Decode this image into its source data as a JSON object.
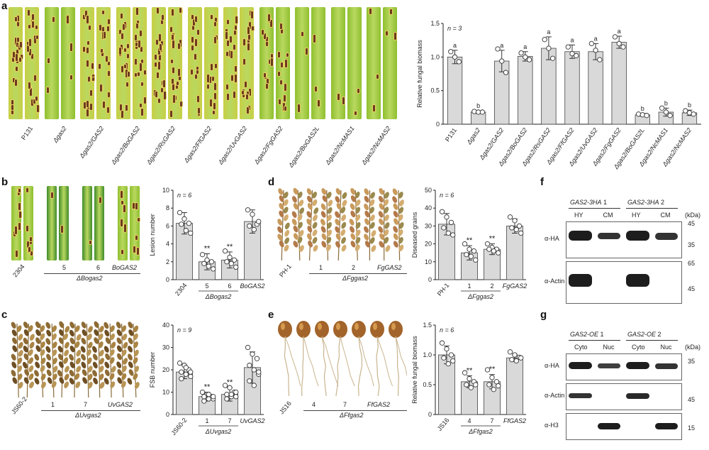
{
  "panels": {
    "a": {
      "letter": "a",
      "photo_labels": [
        "P131",
        "Δgas2",
        "Δgas2/GAS2",
        "Δgas2/BoGAS2",
        "Δgas2/RsGAS2",
        "Δgas2/FfGAS2",
        "Δgas2/UvGAS2",
        "Δgas2/FgGAS2",
        "Δgas2/BoGAS2L",
        "Δgas2/NcMAS1",
        "Δgas2/NcMAS2"
      ],
      "chart_data": {
        "type": "bar",
        "ylabel": "Relative fungal biomass",
        "annotation": "n = 3",
        "ylim": [
          0,
          1.5
        ],
        "yticks": [
          0,
          0.5,
          1.0,
          1.5
        ],
        "categories": [
          "P131",
          "Δgas2",
          "Δgas2/GAS2",
          "Δgas2/BoGAS2",
          "Δgas2/RsGAS2",
          "Δgas2/FfGAS2",
          "Δgas2/UvGAS2",
          "Δgas2/FgGAS2",
          "Δgas2/BoGAS2L",
          "Δgas2/NcMAS1",
          "Δgas2/NcMAS2"
        ],
        "values": [
          1.0,
          0.18,
          0.94,
          1.01,
          1.13,
          1.08,
          1.08,
          1.22,
          0.14,
          0.18,
          0.17
        ],
        "errors": [
          0.1,
          0.02,
          0.16,
          0.07,
          0.17,
          0.1,
          0.12,
          0.09,
          0.02,
          0.06,
          0.04
        ],
        "letters": [
          "a",
          "b",
          "a",
          "a",
          "a",
          "a",
          "a",
          "a",
          "b",
          "b",
          "b"
        ],
        "points": [
          [
            1.08,
            1.0,
            0.93
          ],
          [
            0.19,
            0.18,
            0.18
          ],
          [
            1.12,
            0.94,
            0.77
          ],
          [
            1.06,
            1.0,
            0.96
          ],
          [
            1.26,
            1.13,
            0.98
          ],
          [
            1.15,
            1.05,
            1.02
          ],
          [
            1.2,
            1.1,
            0.96
          ],
          [
            1.3,
            1.2,
            1.15
          ],
          [
            0.15,
            0.14,
            0.13
          ],
          [
            0.24,
            0.18,
            0.13
          ],
          [
            0.2,
            0.17,
            0.15
          ]
        ]
      }
    },
    "b": {
      "letter": "b",
      "photo_labels": [
        "2304",
        "5",
        "6",
        "BoGAS2"
      ],
      "group_label": "ΔBogas2",
      "chart_data": {
        "type": "bar",
        "ylabel": "Lesion number",
        "annotation": "n = 6",
        "ylim": [
          0,
          10
        ],
        "yticks": [
          0,
          2,
          4,
          6,
          8,
          10
        ],
        "categories": [
          "2304",
          "5",
          "6",
          "BoGAS2"
        ],
        "group_label": "ΔBogas2",
        "values": [
          6.3,
          2.0,
          2.2,
          6.5
        ],
        "errors": [
          1.2,
          0.9,
          0.9,
          1.3
        ],
        "stars": [
          "",
          "**",
          "**",
          ""
        ],
        "points": [
          [
            7.5,
            6.8,
            6.3,
            6.2,
            5.5,
            5.2
          ],
          [
            2.8,
            2.2,
            2.0,
            1.8,
            1.5,
            1.2
          ],
          [
            3.2,
            2.5,
            2.2,
            2.0,
            1.8,
            1.4
          ],
          [
            7.8,
            7.3,
            6.2,
            6.0,
            5.6,
            6.5
          ]
        ]
      }
    },
    "c": {
      "letter": "c",
      "photo_labels": [
        "JS60-2",
        "1",
        "7",
        "UvGAS2"
      ],
      "group_label": "ΔUvgas2",
      "chart_data": {
        "type": "bar",
        "ylabel": "FSB number",
        "annotation": "n = 9",
        "ylim": [
          0,
          40
        ],
        "yticks": [
          0,
          10,
          20,
          30,
          40
        ],
        "categories": [
          "JS60-2",
          "1",
          "7",
          "UvGAS2"
        ],
        "group_label": "ΔUvgas2",
        "values": [
          19,
          8,
          9,
          21
        ],
        "errors": [
          3,
          2,
          3,
          7
        ],
        "stars": [
          "",
          "**",
          "**",
          ""
        ],
        "points": [
          [
            23,
            22,
            20,
            19,
            18,
            17,
            16,
            21,
            19
          ],
          [
            10,
            9,
            8,
            8,
            7,
            7,
            6,
            9,
            8
          ],
          [
            13,
            12,
            10,
            9,
            8,
            8,
            7,
            9,
            10
          ],
          [
            30,
            27,
            25,
            22,
            20,
            18,
            15,
            13,
            19
          ]
        ]
      }
    },
    "d": {
      "letter": "d",
      "photo_labels": [
        "PH-1",
        "1",
        "2",
        "FgGAS2"
      ],
      "group_label": "ΔFggas2",
      "chart_data": {
        "type": "bar",
        "ylabel": "Diseased grains",
        "annotation": "n = 6",
        "ylim": [
          0,
          50
        ],
        "yticks": [
          0,
          10,
          20,
          30,
          40,
          50
        ],
        "categories": [
          "PH-1",
          "1",
          "2",
          "FgGAS2"
        ],
        "group_label": "ΔFggas2",
        "values": [
          31,
          15,
          17,
          30
        ],
        "errors": [
          6,
          4,
          3,
          4
        ],
        "stars": [
          "",
          "**",
          "**",
          ""
        ],
        "points": [
          [
            38,
            35,
            32,
            29,
            26,
            25
          ],
          [
            20,
            17,
            16,
            14,
            13,
            11
          ],
          [
            20,
            18,
            17,
            17,
            16,
            15
          ],
          [
            35,
            33,
            30,
            29,
            28,
            26
          ]
        ]
      }
    },
    "e": {
      "letter": "e",
      "photo_labels": [
        "JS16",
        "4",
        "7",
        "FfGAS2"
      ],
      "group_label": "ΔFfgas2",
      "chart_data": {
        "type": "bar",
        "ylabel": "Relative fungal biomass",
        "annotation": "n = 6",
        "ylim": [
          0,
          1.5
        ],
        "yticks": [
          0,
          0.5,
          1.0,
          1.5
        ],
        "categories": [
          "JS16",
          "4",
          "7",
          "FfGAS2"
        ],
        "group_label": "ΔFfgas2",
        "values": [
          1.0,
          0.55,
          0.55,
          0.95
        ],
        "errors": [
          0.15,
          0.1,
          0.12,
          0.06
        ],
        "stars": [
          "",
          "**",
          "**",
          ""
        ],
        "points": [
          [
            1.2,
            1.1,
            1.0,
            0.95,
            0.85,
            0.9
          ],
          [
            0.7,
            0.6,
            0.55,
            0.5,
            0.45,
            0.5
          ],
          [
            0.75,
            0.62,
            0.55,
            0.5,
            0.42,
            0.48
          ],
          [
            1.05,
            1.0,
            0.96,
            0.92,
            0.9,
            0.95
          ]
        ]
      }
    },
    "f": {
      "letter": "f",
      "groups": [
        "GAS2-3HA 1",
        "GAS2-3HA 2"
      ],
      "columns": [
        "HY",
        "CM",
        "HY",
        "CM"
      ],
      "unit": "(kDa)",
      "rows": [
        {
          "label": "α-HA",
          "markers": [
            "45",
            "35"
          ]
        },
        {
          "label": "α-Actin",
          "markers": [
            "65",
            "45"
          ]
        }
      ]
    },
    "g": {
      "letter": "g",
      "groups": [
        "GAS2-OE 1",
        "GAS2-OE 2"
      ],
      "columns": [
        "Cyto",
        "Nuc",
        "Cyto",
        "Nuc"
      ],
      "unit": "(kDa)",
      "rows": [
        {
          "label": "α-HA",
          "markers": [
            "35"
          ]
        },
        {
          "label": "α-Actin",
          "markers": [
            "45"
          ]
        },
        {
          "label": "α-H3",
          "markers": [
            "15"
          ]
        }
      ]
    }
  },
  "colors": {
    "bar": "#d9d9d9",
    "leaf": "#8fbf2e",
    "leaf_yellow": "#c8cf45",
    "lesion": "#6b3b1e",
    "stem": "#8a6a3a"
  }
}
